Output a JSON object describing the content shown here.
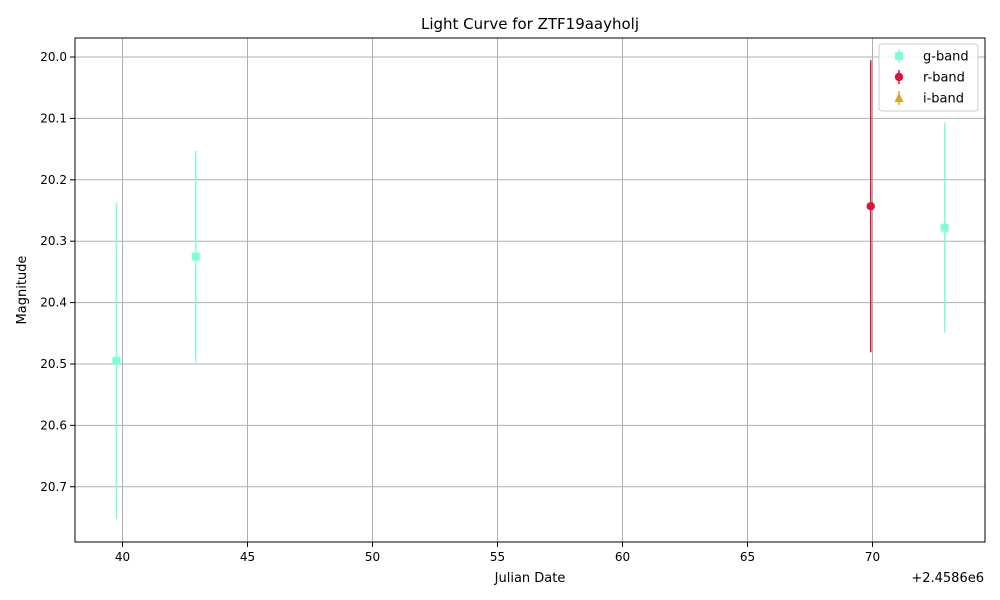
{
  "chart_data": {
    "type": "scatter",
    "title": "Light Curve for ZTF19aayholj",
    "xlabel": "Julian Date",
    "ylabel": "Magnitude",
    "x_offset_label": "+2.4586e6",
    "x_offset": 2458600,
    "xlim": [
      2458638.1,
      2458674.5
    ],
    "ylim": [
      20.79,
      19.969
    ],
    "y_inverted": true,
    "grid": true,
    "legend_position": "top-right",
    "x_ticks": [
      {
        "value": 2458640,
        "label": "40"
      },
      {
        "value": 2458645,
        "label": "45"
      },
      {
        "value": 2458650,
        "label": "50"
      },
      {
        "value": 2458655,
        "label": "55"
      },
      {
        "value": 2458660,
        "label": "60"
      },
      {
        "value": 2458665,
        "label": "65"
      },
      {
        "value": 2458670,
        "label": "70"
      }
    ],
    "y_ticks": [
      {
        "value": 20.0,
        "label": "20.0"
      },
      {
        "value": 20.1,
        "label": "20.1"
      },
      {
        "value": 20.2,
        "label": "20.2"
      },
      {
        "value": 20.3,
        "label": "20.3"
      },
      {
        "value": 20.4,
        "label": "20.4"
      },
      {
        "value": 20.5,
        "label": "20.5"
      },
      {
        "value": 20.6,
        "label": "20.6"
      },
      {
        "value": 20.7,
        "label": "20.7"
      }
    ],
    "series": [
      {
        "name": "g-band",
        "color": "#7fffd4",
        "marker": "square",
        "points": [
          {
            "x": 2458639.76,
            "y": 20.495,
            "err": 0.258
          },
          {
            "x": 2458642.93,
            "y": 20.325,
            "err": 0.172
          },
          {
            "x": 2458672.89,
            "y": 20.278,
            "err": 0.171
          }
        ]
      },
      {
        "name": "r-band",
        "color": "#dc143c",
        "marker": "circle",
        "points": [
          {
            "x": 2458669.93,
            "y": 20.243,
            "err": 0.238
          }
        ]
      },
      {
        "name": "i-band",
        "color": "#daa520",
        "marker": "triangle",
        "points": []
      }
    ]
  }
}
